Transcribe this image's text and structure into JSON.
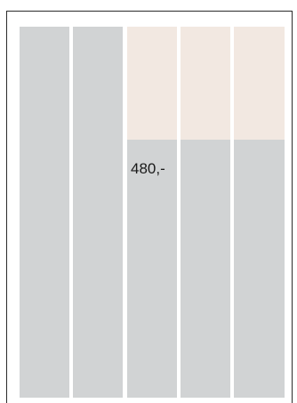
{
  "colors": {
    "column_fill": "#d1d3d4",
    "highlight_fill": "#f2e8e1",
    "frame_border": "#2b2b2b",
    "background": "#ffffff"
  },
  "columns": [
    {
      "highlighted": false,
      "value": ""
    },
    {
      "highlighted": false,
      "value": ""
    },
    {
      "highlighted": true,
      "value": "480,-"
    },
    {
      "highlighted": true,
      "value": ""
    },
    {
      "highlighted": true,
      "value": ""
    }
  ]
}
